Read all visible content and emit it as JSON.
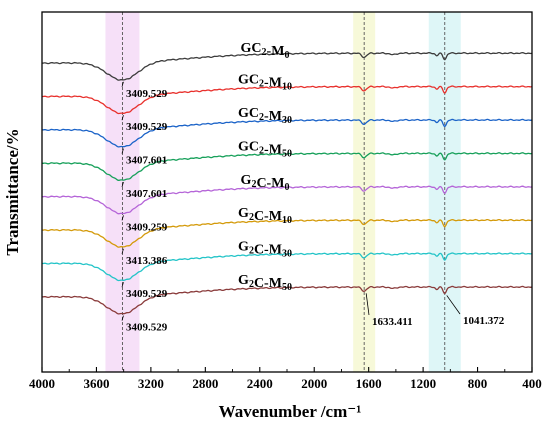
{
  "chart_data": {
    "type": "line",
    "xlabel": "Wavenumber /cm⁻¹",
    "ylabel": "Transmittance/%",
    "xlim": [
      4000,
      400
    ],
    "x_reversed": true,
    "x_ticks": [
      4000,
      3600,
      3200,
      2800,
      2400,
      2000,
      1600,
      1200,
      800,
      400
    ],
    "y_ticks_shown": false,
    "grid": false,
    "legend": "inline labels next to each curve",
    "reference_bands": [
      {
        "center": 3409,
        "color": "#f3d6f5"
      },
      {
        "center": 1633,
        "color": "#f4f7cc"
      },
      {
        "center": 1041,
        "color": "#d3f3f4"
      }
    ],
    "reference_lines": [
      3409,
      1633,
      1041
    ],
    "series": [
      {
        "name": "GC₂-M₀",
        "name_main": "GC",
        "name_sub1": "2",
        "name_mid": "-M",
        "name_sub2": "0",
        "color": "#3c3c3c",
        "offset": 8.0,
        "peak_label": "3409.529"
      },
      {
        "name": "GC₂-M₁₀",
        "name_main": "GC",
        "name_sub1": "2",
        "name_mid": "-M",
        "name_sub2": "10",
        "color": "#e8302c",
        "offset": 7.0,
        "peak_label": "3409.529"
      },
      {
        "name": "GC₂-M₃₀",
        "name_main": "GC",
        "name_sub1": "2",
        "name_mid": "-M",
        "name_sub2": "30",
        "color": "#1b63c8",
        "offset": 6.0,
        "peak_label": "3407.601"
      },
      {
        "name": "GC₂-M₅₀",
        "name_main": "GC",
        "name_sub1": "2",
        "name_mid": "-M",
        "name_sub2": "50",
        "color": "#17a05a",
        "offset": 5.0,
        "peak_label": "3407.601"
      },
      {
        "name": "G₂C-M₀",
        "name_main": "G",
        "name_sub1": "2",
        "name_mid": "C-M",
        "name_sub2": "0",
        "color": "#b565d8",
        "offset": 4.0,
        "peak_label": "3409.259"
      },
      {
        "name": "G₂C-M₁₀",
        "name_main": "G",
        "name_sub1": "2",
        "name_mid": "C-M",
        "name_sub2": "10",
        "color": "#d49a0a",
        "offset": 3.0,
        "peak_label": "3413.386"
      },
      {
        "name": "G₂C-M₃₀",
        "name_main": "G",
        "name_sub1": "2",
        "name_mid": "C-M",
        "name_sub2": "30",
        "color": "#23c4c8",
        "offset": 2.0,
        "peak_label": "3409.529"
      },
      {
        "name": "G₂C-M₅₀",
        "name_main": "G",
        "name_sub1": "2",
        "name_mid": "C-M",
        "name_sub2": "50",
        "color": "#8a3b3b",
        "offset": 1.0,
        "peak_label": "3409.529"
      }
    ],
    "extra_peak_labels": [
      {
        "text": "1633.411",
        "x": 1633
      },
      {
        "text": "1041.372",
        "x": 1041
      }
    ]
  }
}
